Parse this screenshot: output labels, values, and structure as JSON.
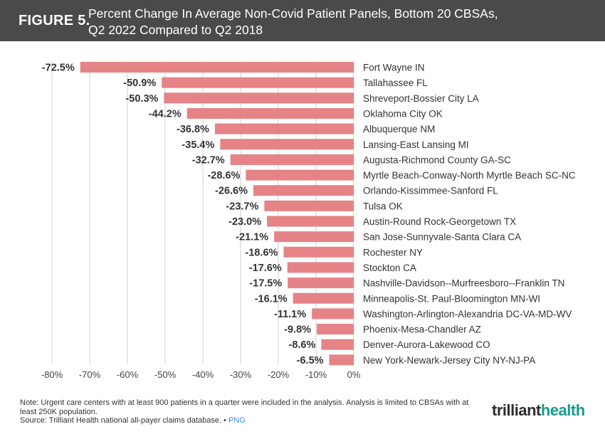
{
  "header": {
    "figure_label": "FIGURE 5.",
    "title_line1": "Percent Change In Average Non-Covid Patient Panels, Bottom 20 CBSAs,",
    "title_line2": "Q2 2022 Compared to Q2 2018"
  },
  "colors": {
    "bar": "#e58386",
    "header_bg": "#4a4a4a",
    "grid": "#cfcfcf"
  },
  "chart_data": {
    "type": "bar",
    "orientation": "horizontal",
    "title": "Percent Change In Average Non-Covid Patient Panels, Bottom 20 CBSAs, Q2 2022 Compared to Q2 2018",
    "categories": [
      "Fort Wayne IN",
      "Tallahassee FL",
      "Shreveport-Bossier City LA",
      "Oklahoma City OK",
      "Albuquerque NM",
      "Lansing-East Lansing MI",
      "Augusta-Richmond County GA-SC",
      "Myrtle Beach-Conway-North Myrtle Beach SC-NC",
      "Orlando-Kissimmee-Sanford FL",
      "Tulsa OK",
      "Austin-Round Rock-Georgetown TX",
      "San Jose-Sunnyvale-Santa Clara CA",
      "Rochester NY",
      "Stockton CA",
      "Nashville-Davidson--Murfreesboro--Franklin TN",
      "Minneapolis-St. Paul-Bloomington MN-WI",
      "Washington-Arlington-Alexandria DC-VA-MD-WV",
      "Phoenix-Mesa-Chandler AZ",
      "Denver-Aurora-Lakewood CO",
      "New York-Newark-Jersey City NY-NJ-PA"
    ],
    "values": [
      -72.5,
      -50.9,
      -50.3,
      -44.2,
      -36.8,
      -35.4,
      -32.7,
      -28.6,
      -26.6,
      -23.7,
      -23.0,
      -21.1,
      -18.6,
      -17.6,
      -17.5,
      -16.1,
      -11.1,
      -9.8,
      -8.6,
      -6.5
    ],
    "data_labels": [
      "-72.5%",
      "-50.9%",
      "-50.3%",
      "-44.2%",
      "-36.8%",
      "-35.4%",
      "-32.7%",
      "-28.6%",
      "-26.6%",
      "-23.7%",
      "-23.0%",
      "-21.1%",
      "-18.6%",
      "-17.6%",
      "-17.5%",
      "-16.1%",
      "-11.1%",
      "-9.8%",
      "-8.6%",
      "-6.5%"
    ],
    "xlim": [
      -80,
      0
    ],
    "x_ticks": [
      -80,
      -70,
      -60,
      -50,
      -40,
      -30,
      -20,
      -10,
      0
    ],
    "x_tick_labels": [
      "-80%",
      "-70%",
      "-60%",
      "-50%",
      "-40%",
      "-30%",
      "-20%",
      "-10%",
      "0%"
    ],
    "xlabel": "",
    "ylabel": "",
    "grid": true
  },
  "notes": {
    "line1": "Note: Urgent care centers with at least 900 patients in a quarter were included in the analysis. Analysis is limited to CBSAs with at least 250K population.",
    "source": "Source: Trilliant Health national all-payer claims database.",
    "separator": "•",
    "png_link": "PNG"
  },
  "logo": {
    "text_main": "trilliant",
    "text_accent": "health"
  }
}
